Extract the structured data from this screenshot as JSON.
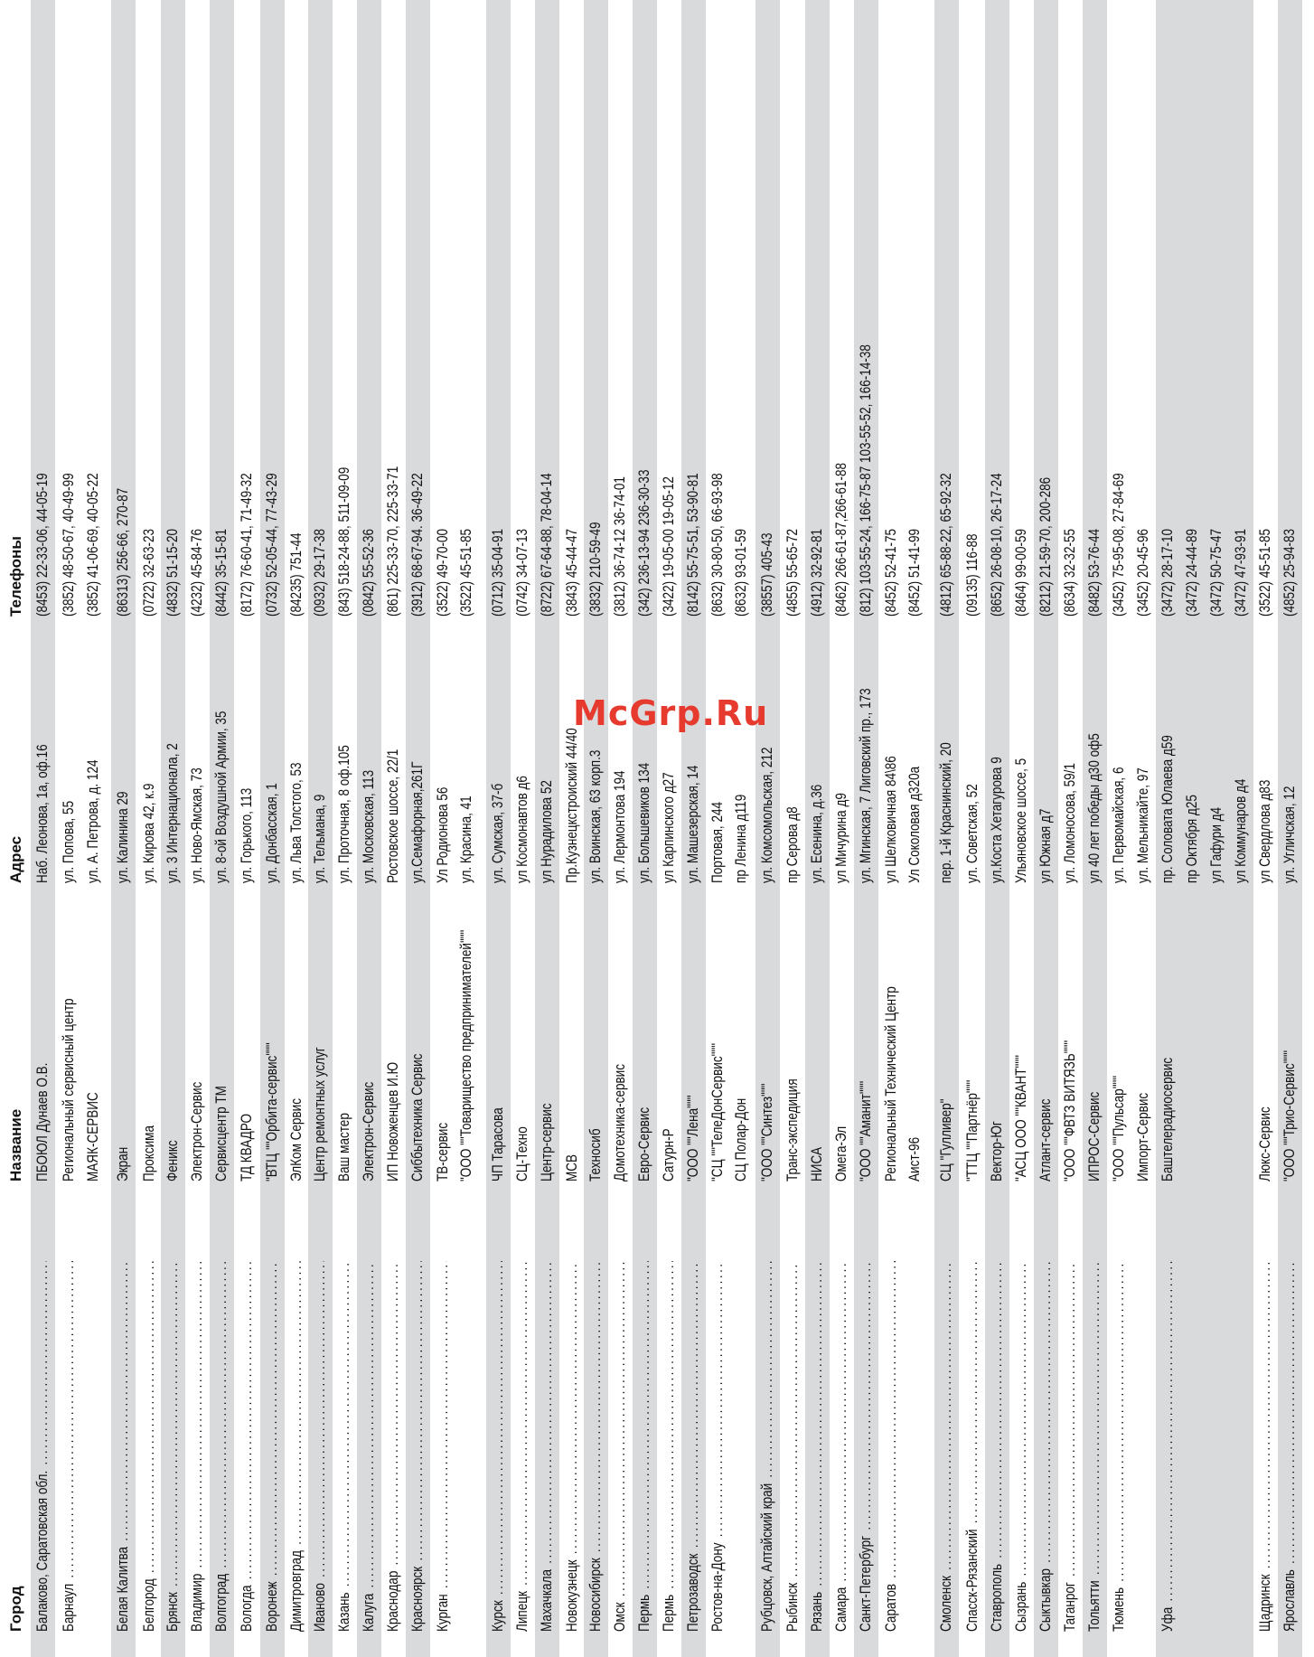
{
  "headers": {
    "city": "Город",
    "name": "Название",
    "address": "Адрес",
    "phones": "Телефоны"
  },
  "watermark": "McGrp.Ru",
  "rows": [
    {
      "shade": true,
      "city": "Балаково, Саратовская обл.",
      "name": "ПБОЮЛ Дунаев О.В.",
      "address": "Наб. Леонова, 1а, оф.16",
      "phones": "(8453) 22-33-06, 44-05-19"
    },
    {
      "shade": false,
      "city": "Барнаул",
      "name": "Региональный сервисный центр",
      "address": "ул. Попова, 55",
      "phones": "(3852) 48-50-67, 40-49-99"
    },
    {
      "shade": false,
      "city": "",
      "name": "МАЯК-СЕРВИС",
      "address": "ул. А. Петрова, д. 124",
      "phones": "(3852) 41-06-69, 40-05-22"
    },
    {
      "shade": true,
      "city": "Белая Калитва",
      "name": "Экран",
      "address": "ул. Калинина 29",
      "phones": "(86313) 256-66, 270-87"
    },
    {
      "shade": false,
      "city": "Белгород",
      "name": "Проксима",
      "address": "ул. Кирова 42, к.9",
      "phones": "(0722) 32-63-23"
    },
    {
      "shade": true,
      "city": "Брянск",
      "name": "Феникс",
      "address": "ул. 3 Интернационала, 2",
      "phones": "(4832) 51-15-20"
    },
    {
      "shade": false,
      "city": "Владимир",
      "name": "Электрон-Сервис",
      "address": "ул. Ново-Ямская, 73",
      "phones": "(4232) 45-84-76"
    },
    {
      "shade": true,
      "city": "Волгоград",
      "name": "Сервисцентр ТМ",
      "address": "ул. 8-ой Воздушной Армии, 35",
      "phones": "(8442) 35-15-81"
    },
    {
      "shade": false,
      "city": "Вологда",
      "name": "ТД КВАДРО",
      "address": "ул. Горького, 113",
      "phones": "(8172) 76-60-41, 71-49-32"
    },
    {
      "shade": true,
      "city": "Воронеж",
      "name": "\"ВТЦ \"\"Орбита-сервис\"\"\"",
      "address": "ул. Донбасская, 1",
      "phones": "(0732) 52-05-44, 77-43-29"
    },
    {
      "shade": false,
      "city": "Димитровград",
      "name": "ЭлКом Сервис",
      "address": "ул. Льва Толстого, 53",
      "phones": "(84235) 751-44"
    },
    {
      "shade": true,
      "city": "Иваново",
      "name": "Центр ремонтных услуг",
      "address": "ул. Тельмана, 9",
      "phones": "(0932) 29-17-38"
    },
    {
      "shade": false,
      "city": "Казань",
      "name": "Ваш мастер",
      "address": "ул. Проточная, 8 оф.105",
      "phones": "(843) 518-24-88, 511-09-09"
    },
    {
      "shade": true,
      "city": "Калуга",
      "name": "Электрон-Сервис",
      "address": "ул. Московская, 113",
      "phones": "(0842) 55-52-36"
    },
    {
      "shade": false,
      "city": "Краснодар",
      "name": "ИП Новоженцев И.Ю",
      "address": "Ростовское шоссе, 22/1",
      "phones": "(861) 225-33-70, 225-33-71"
    },
    {
      "shade": true,
      "city": "Красноярск",
      "name": "Сиббытехника Сервис",
      "address": "ул.Семафорная,261Г",
      "phones": "(3912) 68-67-94. 36-49-22"
    },
    {
      "shade": false,
      "city": "Курган",
      "name": "ТВ-сервис",
      "address": "Ул Родионова 56",
      "phones": "(3522) 49-70-00"
    },
    {
      "shade": false,
      "city": "",
      "name": "\"ООО \"\"Товарищество предпринимателей\"\"\"",
      "address": "ул. Красина, 41",
      "phones": "(3522) 45-51-85"
    },
    {
      "shade": true,
      "city": "Курск",
      "name": "ЧП Тарасова",
      "address": "ул. Сумская, 37-б",
      "phones": "(0712) 35-04-91"
    },
    {
      "shade": false,
      "city": "Липецк",
      "name": "СЦ-Техно",
      "address": "ул Космонавтов д6",
      "phones": "(0742) 34-07-13"
    },
    {
      "shade": true,
      "city": "Махачкала",
      "name": "Центр-сервис",
      "address": "ул Нурадилова 52",
      "phones": "(8722) 67-64-88, 78-04-14"
    },
    {
      "shade": false,
      "city": "Новокузнецк",
      "name": "МСВ",
      "address": "Пр.Кузнецкстроиский 44/40",
      "phones": "(3843) 45-44-47"
    },
    {
      "shade": true,
      "city": "Новосибирск",
      "name": "Техносиб",
      "address": "ул. Воинская, 63 корп.3",
      "phones": "(3832) 210-59-49"
    },
    {
      "shade": false,
      "city": "Омск",
      "name": "Домотехника-сервис",
      "address": "ул. Лермонтова 194",
      "phones": "(3812) 36-74-12 36-74-01"
    },
    {
      "shade": true,
      "city": "Пермь",
      "name": "Евро-Сервис",
      "address": "ул. Большевиков 134",
      "phones": "(342) 236-13-94 236-30-33"
    },
    {
      "shade": false,
      "city": "Пермь",
      "name": "Сатурн-Р",
      "address": "ул Карпинского д27",
      "phones": "(3422) 19-05-00 19-05-12"
    },
    {
      "shade": true,
      "city": "Петрозаводск",
      "name": "\"ООО \"\"Лена\"\"\"",
      "address": "ул. Машезерская, 14",
      "phones": "(8142) 55-75-51, 53-90-81"
    },
    {
      "shade": false,
      "city": "Ростов-на-Дону",
      "name": "\"СЦ \"\"ТелеДонСервис\"\"\"",
      "address": "Портовая, 244",
      "phones": "(8632) 30-80-50, 66-93-98"
    },
    {
      "shade": false,
      "city": "",
      "name": "СЦ Полар-Дон",
      "address": "пр Ленина д119",
      "phones": "(8632) 93-01-59"
    },
    {
      "shade": true,
      "city": "Рубцовск, Алтайский край",
      "name": "\"ООО \"\"Синтез\"\"\"",
      "address": "ул. Комсомольская, 212",
      "phones": "(38557) 405-43"
    },
    {
      "shade": false,
      "city": "Рыбинск",
      "name": "Транс-экспедиция",
      "address": "пр Серова д8",
      "phones": "(4855) 55-65-72"
    },
    {
      "shade": true,
      "city": "Рязань",
      "name": "НИСА",
      "address": "ул. Есенина, д.36",
      "phones": "(4912) 32-92-81"
    },
    {
      "shade": false,
      "city": "Самара",
      "name": "Омега-Эл",
      "address": "ул Мичурина д9",
      "phones": "(8462) 266-61-87,266-61-88"
    },
    {
      "shade": true,
      "city": "Санкт-Петербург",
      "name": "\"ООО \"\"Аманит\"\"\"",
      "address": "ул. Мгинская, 7 Лиговский пр., 173",
      "phones": "(812) 103-55-24, 166-75-87 103-55-52, 166-14-38"
    },
    {
      "shade": false,
      "city": "Саратов",
      "name": "Региональный Технический Центр",
      "address": "ул Шелковичная 84\\86",
      "phones": "(8452) 52-41-75"
    },
    {
      "shade": false,
      "city": "",
      "name": "Аист-96",
      "address": "Ул Соколовая д320а",
      "phones": "(8452) 51-41-99"
    },
    {
      "shade": true,
      "city": "Смоленск",
      "name": "СЦ \"Гулливер\"",
      "address": "пер. 1-й Краснинский, 20",
      "phones": "(4812) 65-88-22, 65-92-32"
    },
    {
      "shade": false,
      "city": "Спасск-Рязанский",
      "name": "\"ТТЦ \"\"Партнёр\"\"\"",
      "address": "ул. Советская, 52",
      "phones": "(09135) 116-88"
    },
    {
      "shade": true,
      "city": "Ставрополь",
      "name": "Вектор-Юг",
      "address": "ул.Коста Хетагурова 9",
      "phones": "(8652) 26-08-10, 26-17-24"
    },
    {
      "shade": false,
      "city": "Сызрань",
      "name": "\"АСЦ ООО \"\"КВАНТ\"\"\"",
      "address": "Ульяновское шоссе, 5",
      "phones": "(8464) 99-00-59"
    },
    {
      "shade": true,
      "city": "Сыктывкар",
      "name": "Атлант-сервис",
      "address": "ул Южная д7",
      "phones": "(8212) 21-59-70, 200-286"
    },
    {
      "shade": false,
      "city": "Таганрог",
      "name": "\"ООО \"\"ФВТЗ ВИТЯЗЬ\"\"\"",
      "address": "ул. Ломоносова, 59/1",
      "phones": "(8634) 32-32-55"
    },
    {
      "shade": true,
      "city": "Тольятти",
      "name": "ИПРОС-Сервис",
      "address": "ул 40 лет победы д30 оф5",
      "phones": "(8482) 53-76-44"
    },
    {
      "shade": false,
      "city": "Тюмень",
      "name": "\"ООО \"\"Пульсар\"\"\"",
      "address": "ул. Первомайская, 6",
      "phones": "(3452) 75-95-08, 27-84-69"
    },
    {
      "shade": false,
      "city": "",
      "name": "Импорт-Сервис",
      "address": "ул. Мельникайте, 97",
      "phones": "(3452) 20-45-96"
    },
    {
      "shade": true,
      "city": "Уфа",
      "name": "Баштелерадиосервис",
      "address": "пр. Соловата Юлаева д59",
      "phones": "(3472) 28-17-10"
    },
    {
      "shade": true,
      "city": "",
      "name": "",
      "address": "пр Октября д25",
      "phones": "(3472) 24-44-89"
    },
    {
      "shade": true,
      "city": "",
      "name": "",
      "address": "ул Гафури д4",
      "phones": "(3472) 50-75-47"
    },
    {
      "shade": true,
      "city": "",
      "name": "",
      "address": "ул Коммунаров д4",
      "phones": "(3472) 47-93-91"
    },
    {
      "shade": false,
      "city": "Щадринск",
      "name": "Люкс-Сервис",
      "address": "ул Свердлова д83",
      "phones": "(3522) 45-51-85"
    },
    {
      "shade": true,
      "city": "Ярославль",
      "name": "\"ООО \"\"Трио-Сервис\"\"\"",
      "address": "ул. Угличская, 12",
      "phones": "(4852) 25-94-83"
    }
  ]
}
